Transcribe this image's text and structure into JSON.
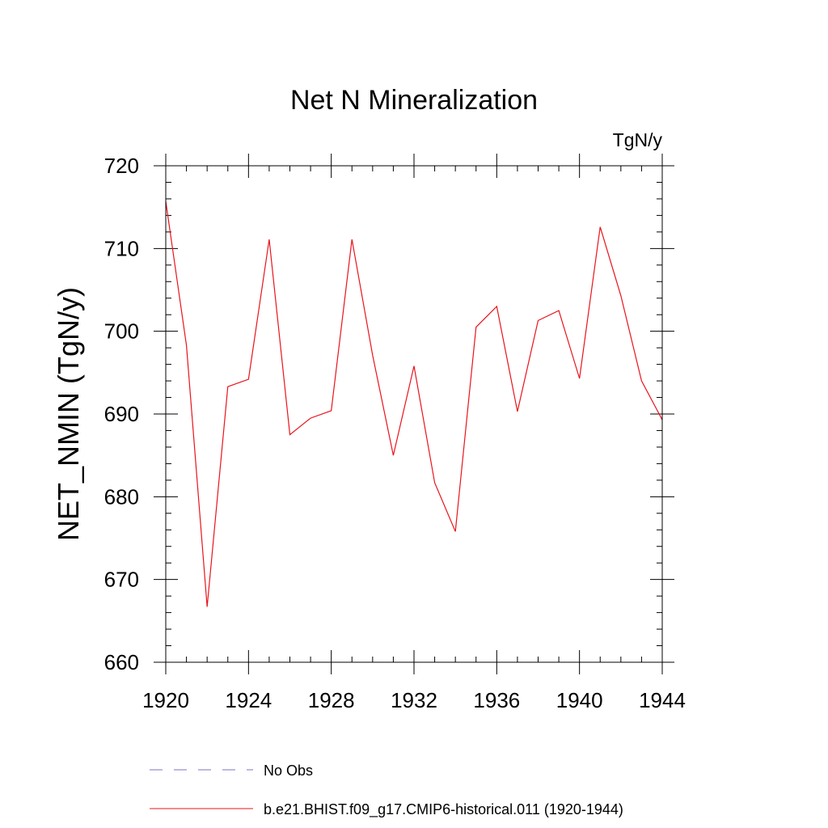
{
  "chart_data": {
    "type": "line",
    "title": "Net N Mineralization",
    "units": "TgN/y",
    "xlabel": "",
    "ylabel": "NET_NMIN  (TgN/y)",
    "xlim": [
      1920,
      1944
    ],
    "ylim": [
      660,
      720
    ],
    "x_ticks": [
      1920,
      1924,
      1928,
      1932,
      1936,
      1940,
      1944
    ],
    "x_minor_step": 1,
    "y_ticks": [
      660,
      670,
      680,
      690,
      700,
      710,
      720
    ],
    "y_minor_step": 2,
    "series": [
      {
        "name": "b.e21.BHIST.f09_g17.CMIP6-historical.011 (1920-1944)",
        "color": "#e8141c",
        "style": "solid",
        "x": [
          1920,
          1921,
          1922,
          1923,
          1924,
          1925,
          1926,
          1927,
          1928,
          1929,
          1930,
          1931,
          1932,
          1933,
          1934,
          1935,
          1936,
          1937,
          1938,
          1939,
          1940,
          1941,
          1942,
          1943,
          1944
        ],
        "values": [
          715.7,
          698.3,
          666.7,
          693.3,
          694.2,
          711.1,
          687.5,
          689.5,
          690.4,
          711.1,
          697.1,
          685.0,
          695.8,
          681.7,
          675.8,
          700.5,
          703.0,
          690.3,
          701.3,
          702.5,
          694.3,
          712.6,
          704.3,
          694.0,
          689.3
        ]
      }
    ],
    "legend": [
      {
        "label": "No Obs",
        "color": "#7a74c0",
        "style": "dashed"
      },
      {
        "label": "b.e21.BHIST.f09_g17.CMIP6-historical.011 (1920-1944)",
        "color": "#e8141c",
        "style": "solid"
      }
    ],
    "legend_position": "bottom",
    "grid": false
  }
}
